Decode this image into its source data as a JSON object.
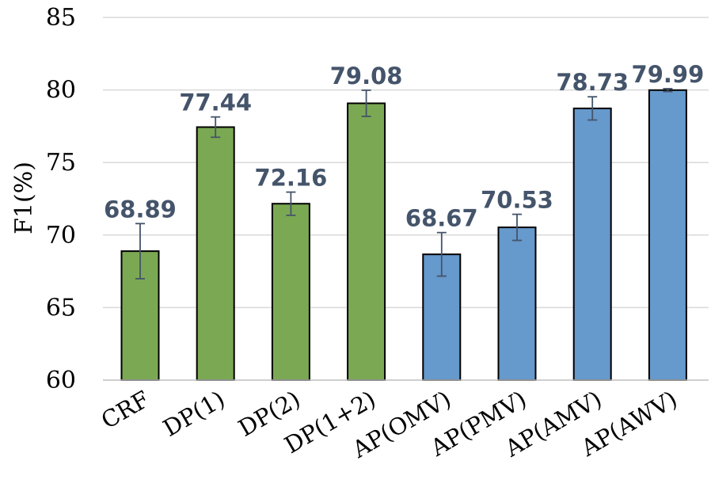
{
  "chart_data": {
    "type": "bar",
    "title": "",
    "xlabel": "",
    "ylabel": "F1(%)",
    "ylim": [
      60,
      85
    ],
    "yticks": [
      60,
      65,
      70,
      75,
      80,
      85
    ],
    "grid": true,
    "categories": [
      "CRF",
      "DP(1)",
      "DP(2)",
      "DP(1+2)",
      "AP(OMV)",
      "AP(PMV)",
      "AP(AMV)",
      "AP(AWV)"
    ],
    "values": [
      68.89,
      77.44,
      72.16,
      79.08,
      68.67,
      70.53,
      78.73,
      79.99
    ],
    "value_labels": [
      "68.89",
      "77.44",
      "72.16",
      "79.08",
      "68.67",
      "70.53",
      "78.73",
      "79.99"
    ],
    "error": [
      1.9,
      0.7,
      0.8,
      0.9,
      1.5,
      0.9,
      0.8,
      0.1
    ],
    "bar_colors": [
      "#7ba953",
      "#7ba953",
      "#7ba953",
      "#7ba953",
      "#6699cc",
      "#6699cc",
      "#6699cc",
      "#6699cc"
    ]
  }
}
